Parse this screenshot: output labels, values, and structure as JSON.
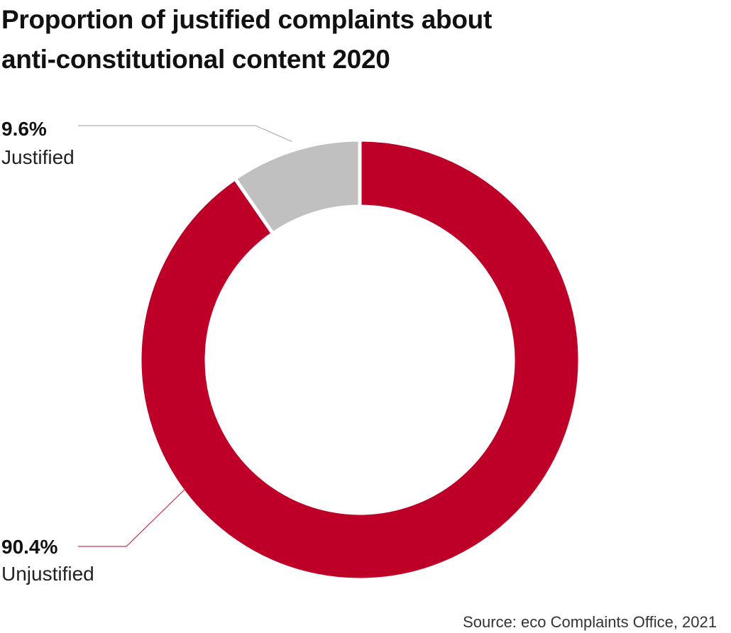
{
  "title": {
    "line1": "Proportion of justified complaints about",
    "line2": "anti-constitutional content 2020"
  },
  "source": "Source: eco Complaints Office, 2021",
  "chart_data": {
    "type": "pie",
    "donut": true,
    "start": "top",
    "direction": "counterclockwise",
    "unit": "%",
    "slices": [
      {
        "label": "Justified",
        "value": 9.6,
        "value_text": "9.6%",
        "color": "#c0c0c0"
      },
      {
        "label": "Unjustified",
        "value": 90.4,
        "value_text": "90.4%",
        "color": "#be0028"
      }
    ],
    "leader_line_colors": [
      "#b0b0b0",
      "#d03050"
    ]
  }
}
